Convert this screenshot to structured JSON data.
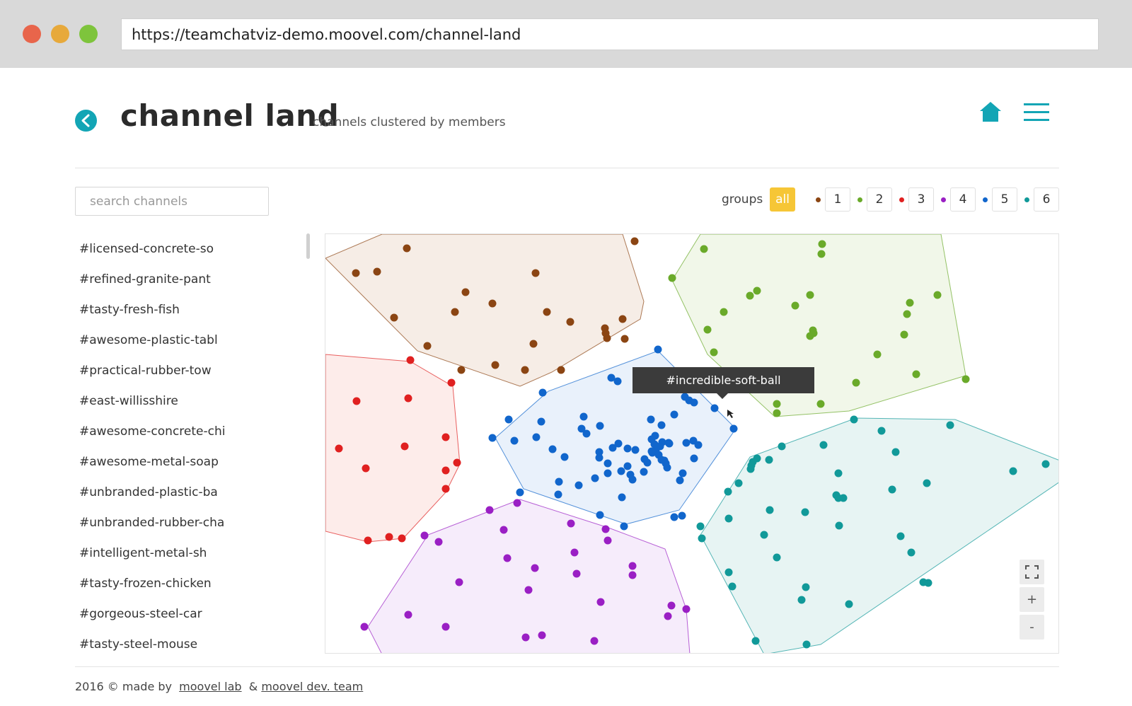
{
  "browser": {
    "url": "https://teamchatviz-demo.moovel.com/channel-land"
  },
  "header": {
    "title": "channel land",
    "subtitle": "channels clustered by members"
  },
  "search": {
    "placeholder": "search channels",
    "value": ""
  },
  "groups": {
    "label": "groups",
    "all_label": "all",
    "items": [
      {
        "label": "1",
        "color": "#8b4513"
      },
      {
        "label": "2",
        "color": "#6aaa2a"
      },
      {
        "label": "3",
        "color": "#e02020"
      },
      {
        "label": "4",
        "color": "#9a1fc4"
      },
      {
        "label": "5",
        "color": "#1166cc"
      },
      {
        "label": "6",
        "color": "#119999"
      }
    ]
  },
  "channels": [
    "#licensed-concrete-so",
    "#refined-granite-pant",
    "#tasty-fresh-fish",
    "#awesome-plastic-tabl",
    "#practical-rubber-tow",
    "#east-willisshire",
    "#awesome-concrete-chi",
    "#awesome-metal-soap",
    "#unbranded-plastic-ba",
    "#unbranded-rubber-cha",
    "#intelligent-metal-sh",
    "#tasty-frozen-chicken",
    "#gorgeous-steel-car",
    "#tasty-steel-mouse"
  ],
  "tooltip": {
    "text": "#incredible-soft-ball"
  },
  "zoom": {
    "fullscreen_icon": "fullscreen-icon",
    "in_label": "+",
    "out_label": "-"
  },
  "footer": {
    "prefix": "2016 © made by",
    "link1": "moovel lab",
    "separator": "&",
    "link2": "moovel dev. team"
  }
}
